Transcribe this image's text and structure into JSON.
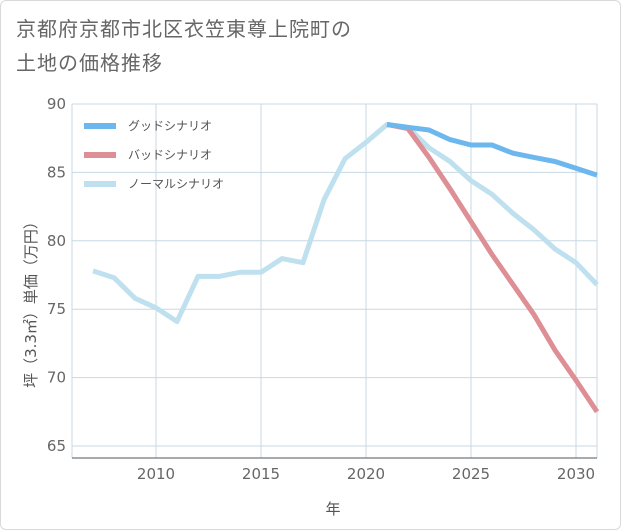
{
  "title_line1": "京都府京都市北区衣笠東尊上院町の",
  "title_line2": "土地の価格推移",
  "colors": {
    "good": "#6cb8ee",
    "bad": "#de8f95",
    "normal": "#bfe0ee",
    "grid": "#c8d8e4",
    "axis": "#555555"
  },
  "chart_data": {
    "type": "line",
    "title": "京都府京都市北区衣笠東尊上院町の土地の価格推移",
    "xlabel": "年",
    "ylabel": "坪（3.3㎡）単価（万円）",
    "xlim": [
      2006,
      2031
    ],
    "ylim": [
      64,
      90
    ],
    "xticks": [
      2010,
      2015,
      2020,
      2025,
      2030
    ],
    "yticks": [
      65,
      70,
      75,
      80,
      85,
      90
    ],
    "grid": true,
    "legend_position": "top-left",
    "series": [
      {
        "name": "グッドシナリオ",
        "color": "#6cb8ee",
        "x": [
          2021,
          2022,
          2023,
          2024,
          2025,
          2026,
          2027,
          2028,
          2029,
          2030,
          2031
        ],
        "values": [
          88.5,
          88.3,
          88.1,
          87.4,
          87.0,
          87.0,
          86.4,
          86.1,
          85.8,
          85.3,
          84.8
        ]
      },
      {
        "name": "バッドシナリオ",
        "color": "#de8f95",
        "x": [
          2021,
          2022,
          2023,
          2024,
          2025,
          2026,
          2027,
          2028,
          2029,
          2030,
          2031
        ],
        "values": [
          88.5,
          88.2,
          86.1,
          83.8,
          81.4,
          79.0,
          76.8,
          74.6,
          72.0,
          69.8,
          67.5
        ]
      },
      {
        "name": "ノーマルシナリオ",
        "color": "#bfe0ee",
        "x": [
          2007,
          2008,
          2009,
          2010,
          2011,
          2012,
          2013,
          2014,
          2015,
          2016,
          2017,
          2018,
          2019,
          2020,
          2021,
          2022,
          2023,
          2024,
          2025,
          2026,
          2027,
          2028,
          2029,
          2030,
          2031
        ],
        "values": [
          77.8,
          77.3,
          75.8,
          75.1,
          74.1,
          77.4,
          77.4,
          77.7,
          77.7,
          78.7,
          78.4,
          83.0,
          86.0,
          87.2,
          88.5,
          88.3,
          86.8,
          85.8,
          84.4,
          83.4,
          82.0,
          80.8,
          79.4,
          78.4,
          76.8
        ]
      }
    ]
  }
}
